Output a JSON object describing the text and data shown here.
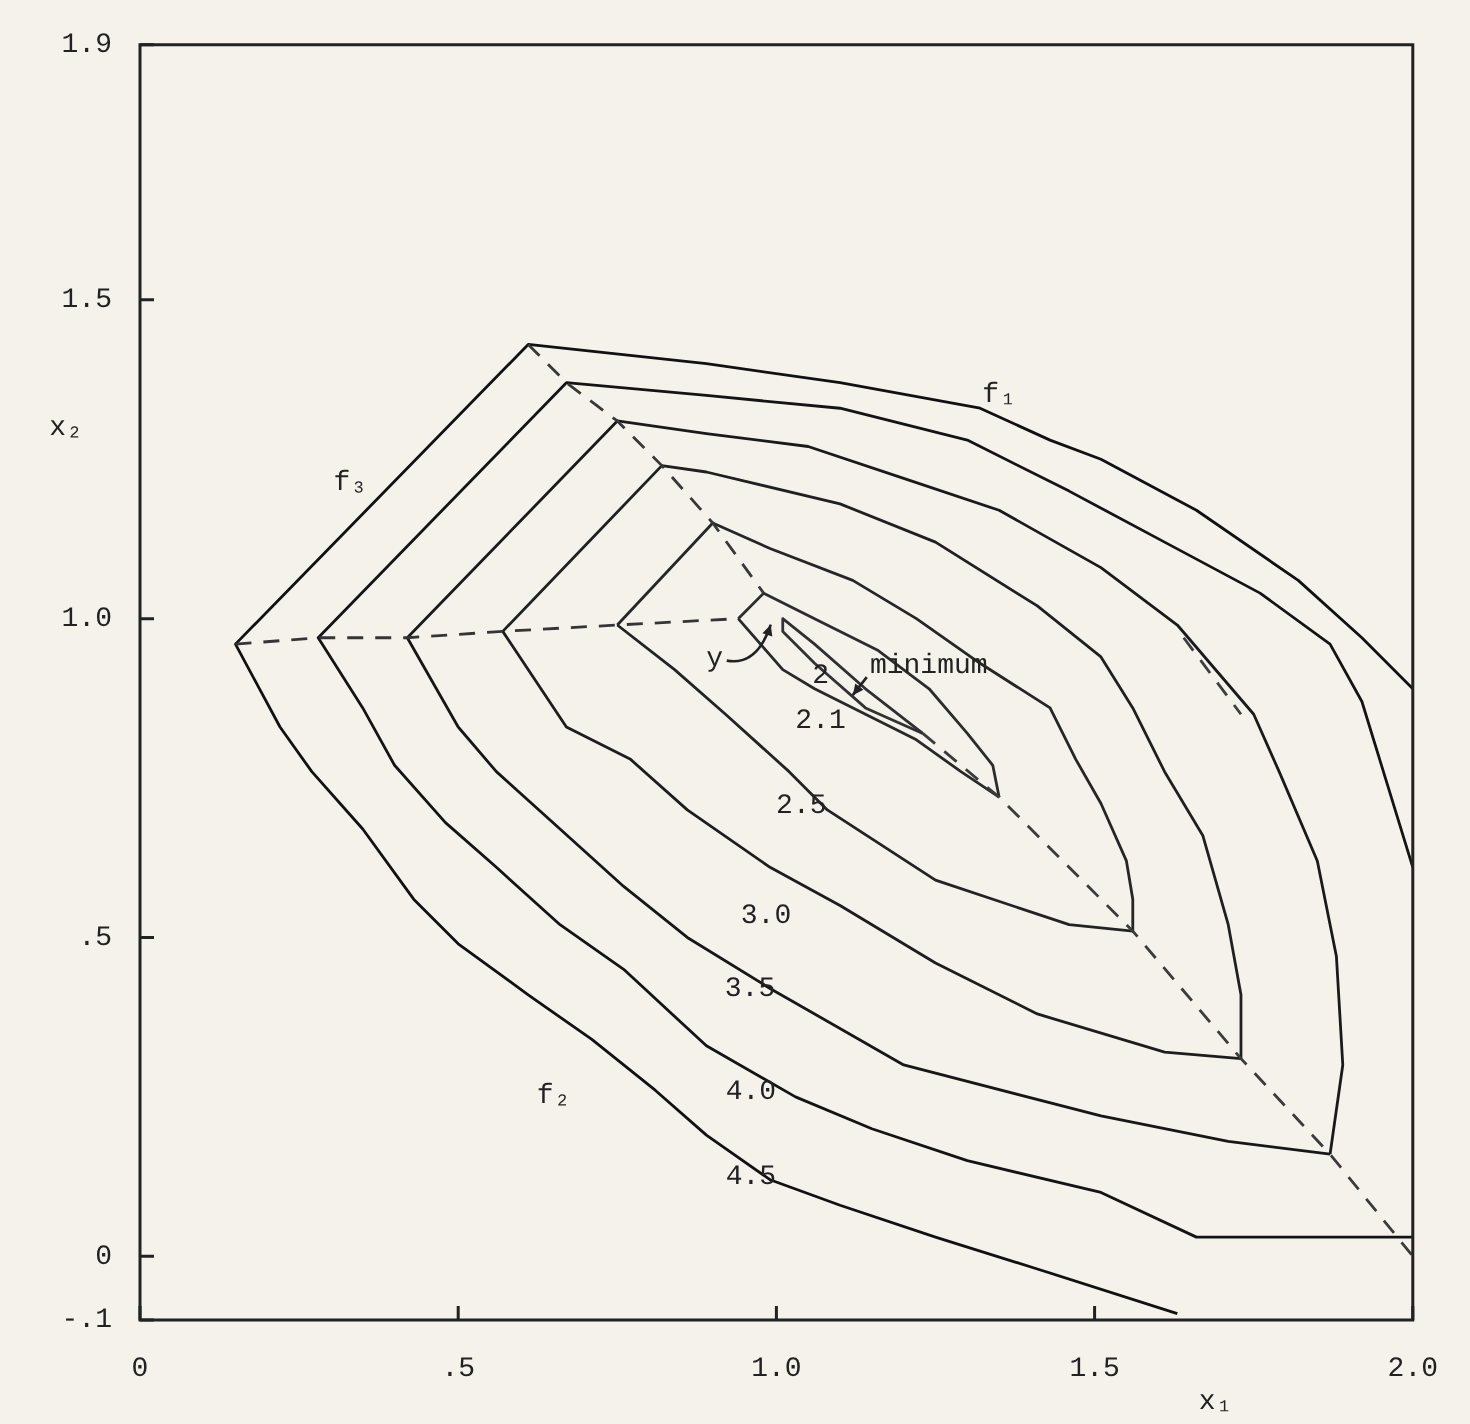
{
  "chart_data": {
    "type": "line",
    "xlabel": "x₁",
    "ylabel": "x₂",
    "xlim": [
      0,
      2.0
    ],
    "ylim": [
      -0.1,
      1.9
    ],
    "xticks": [
      0,
      {
        "value": 0.5,
        "label": ".5"
      },
      {
        "value": 1.0,
        "label": "1.0"
      },
      1.5,
      {
        "value": 2.0,
        "label": "2.0"
      }
    ],
    "yticks": [
      {
        "value": -0.1,
        "label": "-.1"
      },
      0,
      {
        "value": 0.5,
        "label": ".5"
      },
      {
        "value": 1.0,
        "label": "1.0"
      },
      1.5,
      1.9
    ],
    "marker": "none",
    "line_style": "solid",
    "series": [
      {
        "color": "#111111",
        "x": [
          1.63,
          1.41,
          1.25,
          1.1,
          0.99,
          0.89,
          0.81,
          0.71,
          0.61,
          0.5,
          0.43,
          0.35,
          0.27,
          0.22,
          0.15,
          0.61,
          0.89,
          1.1,
          1.32,
          1.43,
          1.51,
          1.66,
          1.82,
          1.92,
          2.0
        ],
        "values": [
          -0.09,
          -0.02,
          0.03,
          0.08,
          0.12,
          0.19,
          0.26,
          0.34,
          0.41,
          0.49,
          0.56,
          0.67,
          0.76,
          0.83,
          0.96,
          1.43,
          1.4,
          1.37,
          1.33,
          1.28,
          1.25,
          1.17,
          1.06,
          0.97,
          0.89
        ]
      },
      {
        "color": "#141414",
        "x": [
          2.0,
          1.66,
          1.51,
          1.3,
          1.15,
          1.03,
          0.89,
          0.76,
          0.66,
          0.56,
          0.48,
          0.4,
          0.35,
          0.28,
          0.67,
          0.89,
          1.1,
          1.3,
          1.46,
          1.61,
          1.76,
          1.87,
          1.92,
          1.96,
          2.0
        ],
        "values": [
          0.03,
          0.03,
          0.1,
          0.15,
          0.2,
          0.25,
          0.33,
          0.45,
          0.52,
          0.61,
          0.68,
          0.77,
          0.86,
          0.97,
          1.37,
          1.35,
          1.33,
          1.28,
          1.2,
          1.12,
          1.04,
          0.96,
          0.87,
          0.74,
          0.61
        ]
      },
      {
        "color": "#171717",
        "x": [
          0.42,
          0.5,
          0.56,
          0.66,
          0.76,
          0.86,
          0.99,
          1.2,
          1.51,
          1.71,
          1.87
        ],
        "values": [
          0.97,
          0.83,
          0.76,
          0.67,
          0.58,
          0.5,
          0.42,
          0.3,
          0.22,
          0.18,
          0.16
        ]
      },
      {
        "color": "#1a1a1a",
        "x": [
          0.42,
          0.75,
          0.89,
          1.05,
          1.2,
          1.35,
          1.51,
          1.63,
          1.75,
          1.79,
          1.85,
          1.88,
          1.89,
          1.87
        ],
        "values": [
          0.97,
          1.31,
          1.29,
          1.27,
          1.22,
          1.17,
          1.08,
          0.99,
          0.85,
          0.76,
          0.62,
          0.47,
          0.3,
          0.16
        ]
      },
      {
        "color": "#1d1d1d",
        "x": [
          0.57,
          0.67,
          0.77,
          0.86,
          0.99,
          1.1,
          1.25,
          1.41,
          1.61,
          1.73
        ],
        "values": [
          0.98,
          0.83,
          0.78,
          0.7,
          0.61,
          0.55,
          0.46,
          0.38,
          0.32,
          0.31
        ]
      },
      {
        "color": "#202020",
        "x": [
          0.57,
          0.82,
          0.89,
          1.1,
          1.25,
          1.41,
          1.51,
          1.56,
          1.61,
          1.67,
          1.71,
          1.73,
          1.73
        ],
        "values": [
          0.98,
          1.24,
          1.23,
          1.18,
          1.12,
          1.02,
          0.94,
          0.86,
          0.76,
          0.66,
          0.52,
          0.41,
          0.31
        ]
      },
      {
        "color": "#232323",
        "x": [
          0.75,
          0.84,
          0.92,
          1.02,
          1.08,
          1.25,
          1.46,
          1.56
        ],
        "values": [
          0.99,
          0.92,
          0.85,
          0.76,
          0.7,
          0.59,
          0.52,
          0.51
        ]
      },
      {
        "color": "#262626",
        "x": [
          0.75,
          0.9,
          0.99,
          1.12,
          1.22,
          1.32,
          1.43,
          1.47,
          1.51,
          1.55,
          1.56,
          1.56
        ],
        "values": [
          0.99,
          1.15,
          1.11,
          1.06,
          1.0,
          0.93,
          0.86,
          0.78,
          0.71,
          0.62,
          0.56,
          0.51
        ]
      },
      {
        "color": "#292929",
        "x": [
          0.94,
          1.01,
          1.06,
          1.14,
          1.22,
          1.29,
          1.35
        ],
        "values": [
          1.0,
          0.92,
          0.89,
          0.85,
          0.81,
          0.76,
          0.72
        ]
      },
      {
        "color": "#2c2c2c",
        "x": [
          0.94,
          0.98,
          1.06,
          1.16,
          1.24,
          1.3,
          1.34,
          1.35
        ],
        "values": [
          1.0,
          1.04,
          1.0,
          0.95,
          0.89,
          0.82,
          0.77,
          0.72
        ]
      },
      {
        "color": "#2f2f2f",
        "x": [
          1.01,
          1.06,
          1.14,
          1.23
        ],
        "values": [
          1.0,
          0.96,
          0.89,
          0.82
        ]
      },
      {
        "color": "#323232",
        "x": [
          1.01,
          1.01,
          1.06,
          1.14,
          1.23
        ],
        "values": [
          1.0,
          0.98,
          0.93,
          0.86,
          0.82
        ]
      },
      {
        "color": "#353535",
        "line_style": "dashed",
        "x": [
          0.15,
          0.28,
          0.42,
          0.57,
          0.75,
          0.94
        ],
        "values": [
          0.96,
          0.97,
          0.97,
          0.98,
          0.99,
          1.0
        ]
      },
      {
        "color": "#383838",
        "line_style": "dashed",
        "x": [
          0.61,
          0.67,
          0.75,
          0.82,
          0.9,
          0.98
        ],
        "values": [
          1.43,
          1.37,
          1.31,
          1.24,
          1.15,
          1.04
        ]
      },
      {
        "color": "#3b3b3b",
        "line_style": "dashed",
        "x": [
          1.23,
          1.35,
          1.56,
          1.73,
          1.87,
          2.0
        ],
        "values": [
          0.82,
          0.72,
          0.51,
          0.31,
          0.16,
          0.0
        ]
      },
      {
        "color": "#3e3e3e",
        "line_style": "dashed",
        "x": [
          1.64,
          1.73
        ],
        "values": [
          0.97,
          0.85
        ]
      }
    ],
    "annotations": [
      {
        "text": "f₁",
        "x": 1.35,
        "y": 1.32
      },
      {
        "text": "f₂",
        "x": 0.65,
        "y": 0.38
      },
      {
        "text": "f₃",
        "x": 0.34,
        "y": 1.15
      },
      {
        "text": "4.5",
        "x": 0.96,
        "y": 0.14
      },
      {
        "text": "4.0",
        "x": 0.96,
        "y": 0.29
      },
      {
        "text": "3.5",
        "x": 0.99,
        "y": 0.42
      },
      {
        "text": "3.0",
        "x": 0.99,
        "y": 0.61
      },
      {
        "text": "2.5",
        "x": 1.08,
        "y": 0.7
      },
      {
        "text": "2.1",
        "x": 1.06,
        "y": 0.89
      },
      {
        "text": "2",
        "x": 1.06,
        "y": 0.93
      },
      {
        "text": "minimum",
        "x": 1.12,
        "y": 0.88
      },
      {
        "text": "y",
        "x": 1.01,
        "y": 1.0
      }
    ]
  }
}
